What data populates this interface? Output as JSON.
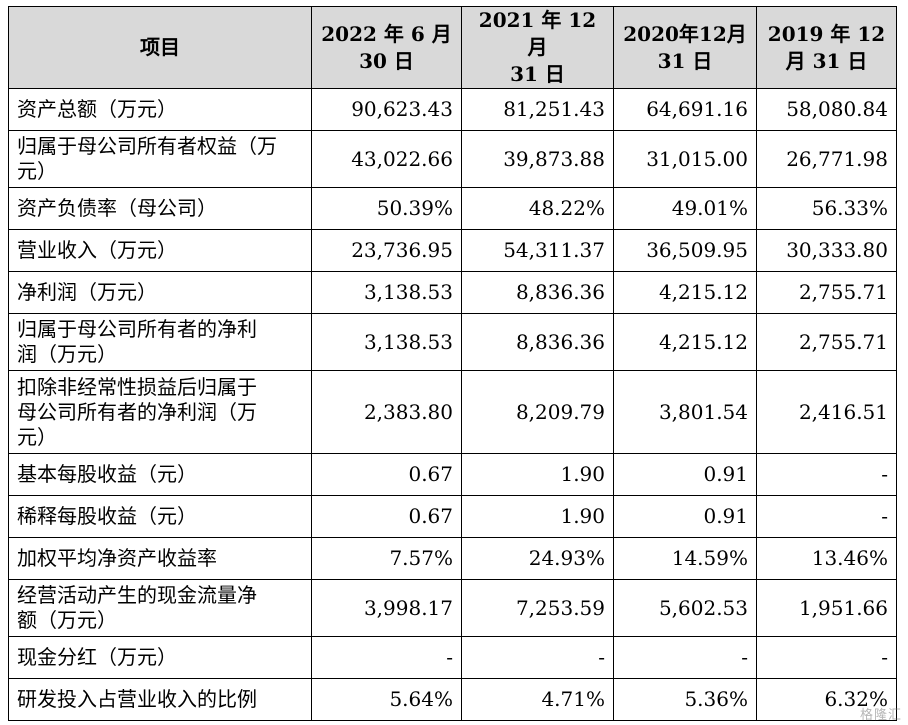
{
  "header": {
    "item": "项目",
    "col1": [
      "2022 年 6 月",
      "30 日"
    ],
    "col2": [
      "2021 年 12 月",
      "31 日"
    ],
    "col3": [
      "2020年12月",
      "31 日"
    ],
    "col4": [
      "2019 年 12",
      "月 31 日"
    ]
  },
  "rows": [
    {
      "label": [
        "资产总额（万元）"
      ],
      "values": [
        "90,623.43",
        "81,251.43",
        "64,691.16",
        "58,080.84"
      ]
    },
    {
      "label": [
        "归属于母公司所有者权益（万",
        "元）"
      ],
      "values": [
        "43,022.66",
        "39,873.88",
        "31,015.00",
        "26,771.98"
      ]
    },
    {
      "label": [
        "资产负债率（母公司）"
      ],
      "values": [
        "50.39%",
        "48.22%",
        "49.01%",
        "56.33%"
      ]
    },
    {
      "label": [
        "营业收入（万元）"
      ],
      "values": [
        "23,736.95",
        "54,311.37",
        "36,509.95",
        "30,333.80"
      ]
    },
    {
      "label": [
        "净利润（万元）"
      ],
      "values": [
        "3,138.53",
        "8,836.36",
        "4,215.12",
        "2,755.71"
      ]
    },
    {
      "label": [
        "归属于母公司所有者的净利",
        "润（万元）"
      ],
      "values": [
        "3,138.53",
        "8,836.36",
        "4,215.12",
        "2,755.71"
      ]
    },
    {
      "label": [
        "扣除非经常性损益后归属于",
        "母公司所有者的净利润（万",
        "元）"
      ],
      "values": [
        "2,383.80",
        "8,209.79",
        "3,801.54",
        "2,416.51"
      ]
    },
    {
      "label": [
        "基本每股收益（元）"
      ],
      "values": [
        "0.67",
        "1.90",
        "0.91",
        "-"
      ]
    },
    {
      "label": [
        "稀释每股收益（元）"
      ],
      "values": [
        "0.67",
        "1.90",
        "0.91",
        "-"
      ]
    },
    {
      "label": [
        "加权平均净资产收益率"
      ],
      "values": [
        "7.57%",
        "24.93%",
        "14.59%",
        "13.46%"
      ]
    },
    {
      "label": [
        "经营活动产生的现金流量净",
        "额（万元）"
      ],
      "values": [
        "3,998.17",
        "7,253.59",
        "5,602.53",
        "1,951.66"
      ]
    },
    {
      "label": [
        "现金分红（万元）"
      ],
      "values": [
        "-",
        "-",
        "-",
        "-"
      ]
    },
    {
      "label": [
        "研发投入占营业收入的比例"
      ],
      "values": [
        "5.64%",
        "4.71%",
        "5.36%",
        "6.32%"
      ]
    }
  ],
  "watermark": "格隆汇"
}
